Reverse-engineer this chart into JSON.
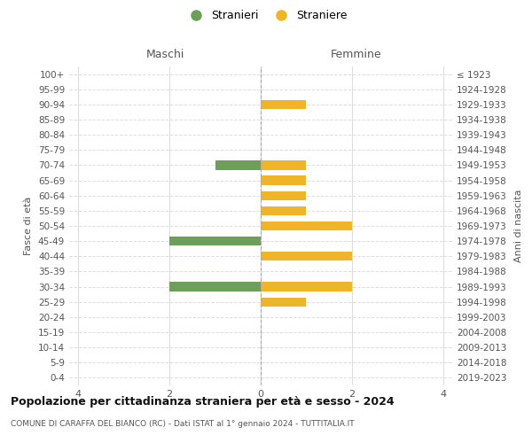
{
  "age_groups": [
    "100+",
    "95-99",
    "90-94",
    "85-89",
    "80-84",
    "75-79",
    "70-74",
    "65-69",
    "60-64",
    "55-59",
    "50-54",
    "45-49",
    "40-44",
    "35-39",
    "30-34",
    "25-29",
    "20-24",
    "15-19",
    "10-14",
    "5-9",
    "0-4"
  ],
  "birth_years": [
    "≤ 1923",
    "1924-1928",
    "1929-1933",
    "1934-1938",
    "1939-1943",
    "1944-1948",
    "1949-1953",
    "1954-1958",
    "1959-1963",
    "1964-1968",
    "1969-1973",
    "1974-1978",
    "1979-1983",
    "1984-1988",
    "1989-1993",
    "1994-1998",
    "1999-2003",
    "2004-2008",
    "2009-2013",
    "2014-2018",
    "2019-2023"
  ],
  "males": [
    0,
    0,
    0,
    0,
    0,
    0,
    -1,
    0,
    0,
    0,
    0,
    -2,
    0,
    0,
    -2,
    0,
    0,
    0,
    0,
    0,
    0
  ],
  "females": [
    0,
    0,
    1,
    0,
    0,
    0,
    1,
    1,
    1,
    1,
    2,
    0,
    2,
    0,
    2,
    1,
    0,
    0,
    0,
    0,
    0
  ],
  "male_color": "#6d9e5a",
  "female_color": "#f0b429",
  "title": "Popolazione per cittadinanza straniera per età e sesso - 2024",
  "subtitle": "COMUNE DI CARAFFA DEL BIANCO (RC) - Dati ISTAT al 1° gennaio 2024 - TUTTITALIA.IT",
  "xlabel_left": "Maschi",
  "xlabel_right": "Femmine",
  "ylabel_left": "Fasce di età",
  "ylabel_right": "Anni di nascita",
  "legend_male": "Stranieri",
  "legend_female": "Straniere",
  "xlim": [
    -4.2,
    4.2
  ],
  "xticks": [
    -4,
    -2,
    0,
    2,
    4
  ],
  "xtick_labels": [
    "4",
    "2",
    "0",
    "2",
    "4"
  ],
  "background_color": "#ffffff",
  "grid_color": "#dddddd"
}
